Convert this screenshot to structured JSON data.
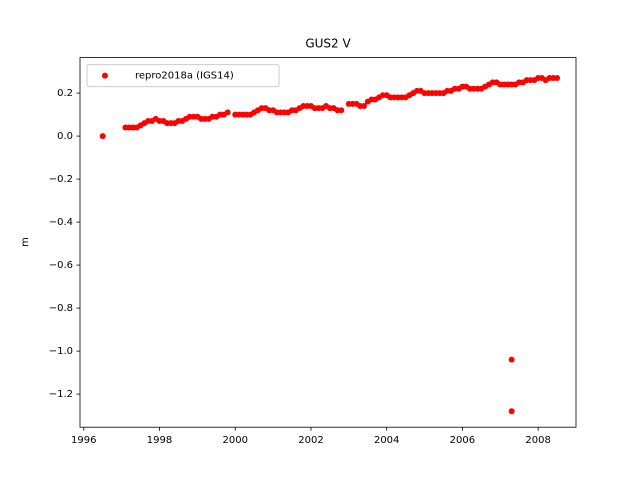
{
  "chart_data": {
    "type": "scatter",
    "title": "GUS2 V",
    "ylabel": "m",
    "legend": "upper left",
    "grid": false,
    "series": [
      {
        "name": "repro2018a (IGS14)",
        "color": "#ff0000",
        "x": [
          1996.5,
          1997.1,
          1997.2,
          1997.3,
          1997.4,
          1997.5,
          1997.6,
          1997.7,
          1997.8,
          1997.9,
          1998.0,
          1998.1,
          1998.2,
          1998.3,
          1998.4,
          1998.5,
          1998.6,
          1998.7,
          1998.8,
          1998.9,
          1999.0,
          1999.1,
          1999.2,
          1999.3,
          1999.4,
          1999.5,
          1999.6,
          1999.7,
          1999.8,
          2000.0,
          2000.1,
          2000.2,
          2000.3,
          2000.4,
          2000.5,
          2000.6,
          2000.7,
          2000.8,
          2000.9,
          2001.0,
          2001.1,
          2001.2,
          2001.3,
          2001.4,
          2001.5,
          2001.6,
          2001.7,
          2001.8,
          2001.9,
          2002.0,
          2002.1,
          2002.2,
          2002.3,
          2002.4,
          2002.5,
          2002.6,
          2002.7,
          2002.8,
          2003.0,
          2003.1,
          2003.2,
          2003.3,
          2003.4,
          2003.5,
          2003.6,
          2003.7,
          2003.8,
          2003.9,
          2004.0,
          2004.1,
          2004.2,
          2004.3,
          2004.4,
          2004.5,
          2004.6,
          2004.7,
          2004.8,
          2004.9,
          2005.0,
          2005.1,
          2005.2,
          2005.3,
          2005.4,
          2005.5,
          2005.6,
          2005.7,
          2005.8,
          2005.9,
          2006.0,
          2006.1,
          2006.2,
          2006.3,
          2006.4,
          2006.5,
          2006.6,
          2006.7,
          2006.8,
          2006.9,
          2007.0,
          2007.1,
          2007.2,
          2007.3,
          2007.3,
          2007.3,
          2007.4,
          2007.5,
          2007.6,
          2007.7,
          2007.8,
          2007.9,
          2008.0,
          2008.1,
          2008.2,
          2008.3,
          2008.4,
          2008.5
        ],
        "values": [
          0.0,
          0.04,
          0.04,
          0.04,
          0.04,
          0.05,
          0.06,
          0.07,
          0.07,
          0.08,
          0.07,
          0.07,
          0.06,
          0.06,
          0.06,
          0.07,
          0.07,
          0.08,
          0.09,
          0.09,
          0.09,
          0.08,
          0.08,
          0.08,
          0.09,
          0.09,
          0.1,
          0.1,
          0.11,
          0.1,
          0.1,
          0.1,
          0.1,
          0.1,
          0.11,
          0.12,
          0.13,
          0.13,
          0.12,
          0.12,
          0.11,
          0.11,
          0.11,
          0.11,
          0.12,
          0.12,
          0.13,
          0.14,
          0.14,
          0.14,
          0.13,
          0.13,
          0.13,
          0.14,
          0.13,
          0.13,
          0.12,
          0.12,
          0.15,
          0.15,
          0.15,
          0.14,
          0.14,
          0.16,
          0.17,
          0.17,
          0.18,
          0.19,
          0.19,
          0.18,
          0.18,
          0.18,
          0.18,
          0.18,
          0.19,
          0.2,
          0.21,
          0.21,
          0.2,
          0.2,
          0.2,
          0.2,
          0.2,
          0.2,
          0.21,
          0.21,
          0.22,
          0.22,
          0.23,
          0.23,
          0.22,
          0.22,
          0.22,
          0.22,
          0.23,
          0.24,
          0.25,
          0.25,
          0.24,
          0.24,
          0.24,
          0.24,
          -1.04,
          -1.28,
          0.24,
          0.25,
          0.25,
          0.26,
          0.26,
          0.26,
          0.27,
          0.27,
          0.26,
          0.27,
          0.27,
          0.27
        ]
      }
    ],
    "xlim": [
      1995.9,
      2009.0
    ],
    "xticks": [
      1996,
      1998,
      2000,
      2002,
      2004,
      2006,
      2008
    ],
    "ylim": [
      -1.354,
      0.365
    ],
    "yticks": [
      {
        "value": -1.2,
        "label": "−1.2"
      },
      {
        "value": -1.0,
        "label": "−1.0"
      },
      {
        "value": -0.8,
        "label": "−0.8"
      },
      {
        "value": -0.6,
        "label": "−0.6"
      },
      {
        "value": -0.4,
        "label": "−0.4"
      },
      {
        "value": -0.2,
        "label": "−0.2"
      },
      {
        "value": 0.0,
        "label": "0.0"
      },
      0.2
    ]
  }
}
